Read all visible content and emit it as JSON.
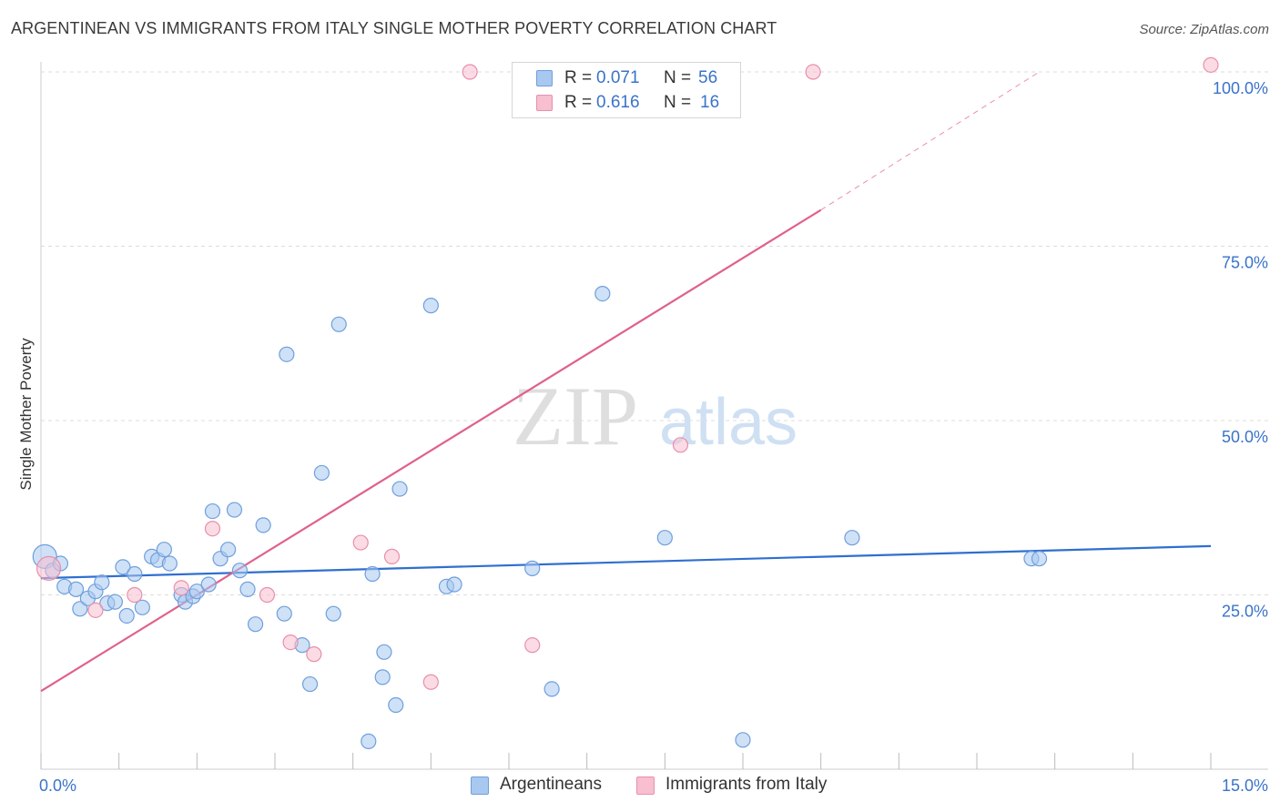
{
  "header": {
    "title": "ARGENTINEAN VS IMMIGRANTS FROM ITALY SINGLE MOTHER POVERTY CORRELATION CHART",
    "source": "Source: ZipAtlas.com"
  },
  "legend_top": {
    "series1": {
      "r_label": "R = ",
      "r_value": "0.071",
      "n_label": "N = ",
      "n_value": "56"
    },
    "series2": {
      "r_label": "R = ",
      "r_value": "0.616",
      "n_label": "N = ",
      "n_value": "16"
    }
  },
  "legend_bottom": {
    "series1": "Argentineans",
    "series2": "Immigrants from Italy"
  },
  "watermark": {
    "zip": "ZIP",
    "atlas": "atlas"
  },
  "colors": {
    "blue_fill": "#a8c8f0",
    "blue_stroke": "#6f9fdc",
    "blue_line": "#2f6fd0",
    "pink_fill": "#f7bfd0",
    "pink_stroke": "#e98fab",
    "pink_line": "#e0618a",
    "axis_text": "#3a73c9",
    "grid": "#dcdcdc"
  },
  "chart_data": {
    "type": "scatter",
    "title": "ARGENTINEAN VS IMMIGRANTS FROM ITALY SINGLE MOTHER POVERTY CORRELATION CHART",
    "xlabel": "",
    "ylabel": "Single Mother Poverty",
    "xlim": [
      0,
      15
    ],
    "ylim": [
      0,
      100
    ],
    "x_tick_labels": [
      "0.0%",
      "15.0%"
    ],
    "y_tick_labels": [
      {
        "value": 25,
        "label": "25.0%"
      },
      {
        "value": 50,
        "label": "50.0%"
      },
      {
        "value": 75,
        "label": "75.0%"
      },
      {
        "value": 100,
        "label": "100.0%"
      }
    ],
    "grid": true,
    "series": [
      {
        "name": "Argentineans",
        "color": "#6f9fdc",
        "R": 0.071,
        "N": 56,
        "points": [
          [
            0.05,
            30.5
          ],
          [
            0.15,
            28.5
          ],
          [
            0.25,
            29.5
          ],
          [
            0.3,
            26.2
          ],
          [
            0.45,
            25.8
          ],
          [
            0.5,
            23.0
          ],
          [
            0.6,
            24.5
          ],
          [
            0.7,
            25.5
          ],
          [
            0.78,
            26.8
          ],
          [
            0.85,
            23.8
          ],
          [
            0.95,
            24.0
          ],
          [
            1.05,
            29.0
          ],
          [
            1.1,
            22.0
          ],
          [
            1.2,
            28.0
          ],
          [
            1.3,
            23.2
          ],
          [
            1.42,
            30.5
          ],
          [
            1.5,
            30.0
          ],
          [
            1.58,
            31.5
          ],
          [
            1.65,
            29.5
          ],
          [
            1.8,
            25.0
          ],
          [
            1.85,
            24.0
          ],
          [
            1.95,
            24.8
          ],
          [
            2.0,
            25.5
          ],
          [
            2.15,
            26.5
          ],
          [
            2.2,
            37.0
          ],
          [
            2.3,
            30.2
          ],
          [
            2.4,
            31.5
          ],
          [
            2.48,
            37.2
          ],
          [
            2.55,
            28.5
          ],
          [
            2.65,
            25.8
          ],
          [
            2.75,
            20.8
          ],
          [
            2.85,
            35.0
          ],
          [
            3.15,
            59.5
          ],
          [
            3.12,
            22.3
          ],
          [
            3.35,
            17.8
          ],
          [
            3.45,
            12.2
          ],
          [
            3.6,
            42.5
          ],
          [
            3.75,
            22.3
          ],
          [
            3.82,
            63.8
          ],
          [
            4.2,
            4.0
          ],
          [
            4.25,
            28.0
          ],
          [
            4.4,
            16.8
          ],
          [
            4.38,
            13.2
          ],
          [
            4.55,
            9.2
          ],
          [
            4.6,
            40.2
          ],
          [
            5.0,
            66.5
          ],
          [
            5.2,
            26.2
          ],
          [
            5.3,
            26.5
          ],
          [
            6.3,
            28.8
          ],
          [
            6.55,
            11.5
          ],
          [
            7.2,
            68.2
          ],
          [
            8.0,
            33.2
          ],
          [
            9.0,
            4.2
          ],
          [
            10.4,
            33.2
          ],
          [
            12.7,
            30.2
          ],
          [
            12.8,
            30.2
          ]
        ],
        "trend": {
          "x": [
            0,
            15
          ],
          "y": [
            27.4,
            32.0
          ]
        }
      },
      {
        "name": "Immigrants from Italy",
        "color": "#e98fab",
        "R": 0.616,
        "N": 16,
        "points": [
          [
            0.1,
            28.8
          ],
          [
            0.7,
            22.8
          ],
          [
            1.2,
            25.0
          ],
          [
            1.8,
            26.0
          ],
          [
            2.2,
            34.5
          ],
          [
            2.9,
            25.0
          ],
          [
            3.2,
            18.2
          ],
          [
            3.5,
            16.5
          ],
          [
            4.1,
            32.5
          ],
          [
            4.5,
            30.5
          ],
          [
            5.0,
            12.5
          ],
          [
            5.5,
            100.0
          ],
          [
            6.3,
            17.8
          ],
          [
            8.2,
            46.5
          ],
          [
            9.9,
            100.0
          ],
          [
            15.0,
            101.0
          ]
        ],
        "trend": {
          "x": [
            0,
            10.0
          ],
          "y": [
            11.2,
            80.2
          ]
        },
        "trend_extension": {
          "x": [
            10.0,
            12.8
          ],
          "y": [
            80.2,
            100.0
          ]
        }
      }
    ]
  }
}
